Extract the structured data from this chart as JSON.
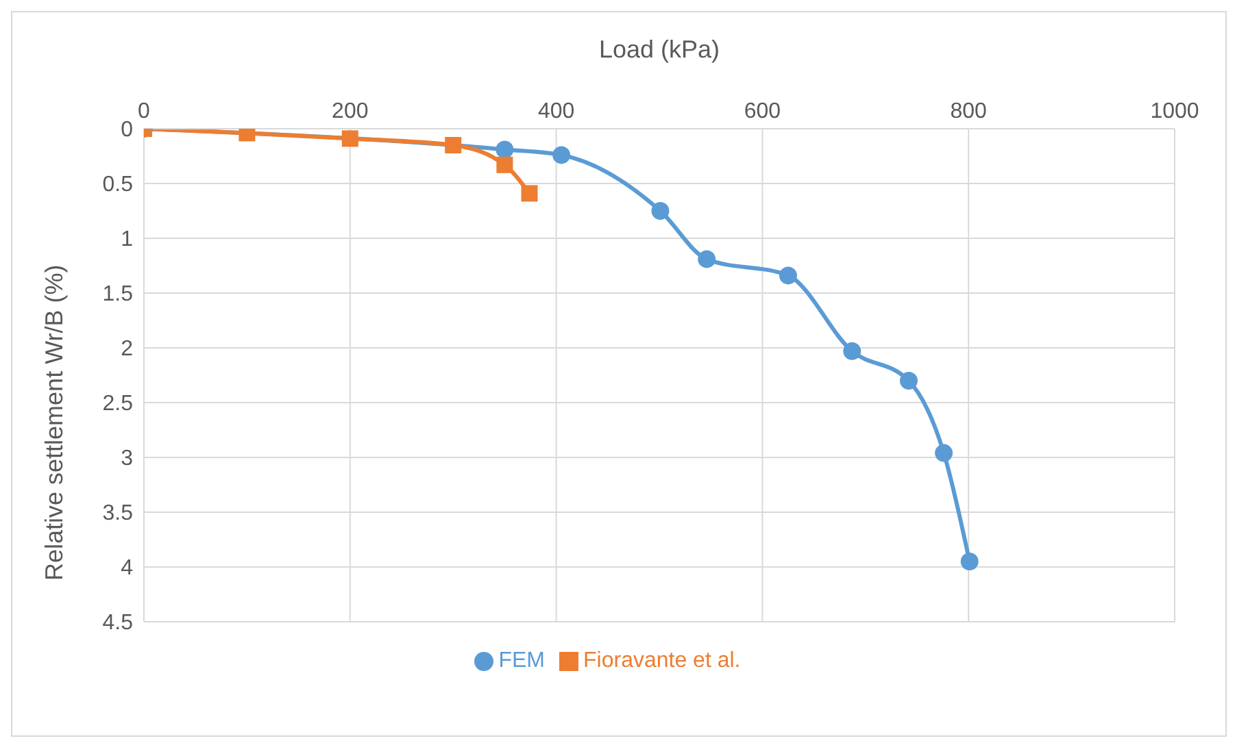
{
  "chart_data": {
    "type": "line",
    "xlabel": "Load (kPa)",
    "ylabel": "Relative settlement Wr/B (%)",
    "xlim": [
      0,
      1000
    ],
    "xticks": [
      0,
      200,
      400,
      600,
      800,
      1000
    ],
    "ylim": [
      4.5,
      0
    ],
    "yticks": [
      0,
      0.5,
      1,
      1.5,
      2,
      2.5,
      3,
      3.5,
      4,
      4.5
    ],
    "grid": true,
    "legend": "bottom",
    "line_style": "solid",
    "series": [
      {
        "name": "FEM",
        "color": "#5b9bd5",
        "marker": "circle",
        "x": [
          0,
          350,
          405,
          501,
          546,
          625,
          687,
          742,
          776,
          801
        ],
        "values": [
          0,
          0.19,
          0.24,
          0.75,
          1.19,
          1.34,
          2.03,
          2.3,
          2.96,
          3.95
        ]
      },
      {
        "name": "Fioravante et al.",
        "color": "#ed7d31",
        "marker": "square",
        "x": [
          0,
          100,
          200,
          300,
          350,
          374
        ],
        "values": [
          0,
          0.04,
          0.09,
          0.15,
          0.33,
          0.59
        ]
      }
    ]
  }
}
